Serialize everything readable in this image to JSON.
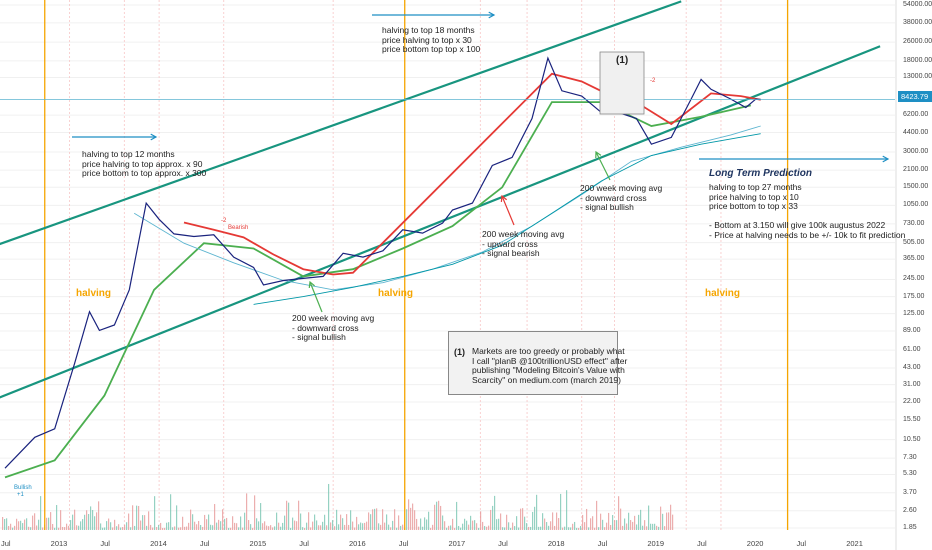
{
  "chart_data": {
    "type": "line",
    "title": "",
    "xlabel": "",
    "ylabel": "",
    "scale": "log",
    "y_ticks": [
      "54000.00",
      "38000.00",
      "26000.00",
      "18000.00",
      "13000.00",
      "6200.00",
      "4400.00",
      "3000.00",
      "2100.00",
      "1500.00",
      "1050.00",
      "730.00",
      "505.00",
      "365.00",
      "245.00",
      "175.00",
      "125.00",
      "89.00",
      "61.00",
      "43.00",
      "31.00",
      "22.00",
      "15.50",
      "10.50",
      "7.30",
      "5.30",
      "3.70",
      "2.60",
      "1.85"
    ],
    "x_ticks": [
      "Jul",
      "2013",
      "Jul",
      "2014",
      "Jul",
      "2015",
      "Jul",
      "2016",
      "Jul",
      "2017",
      "Jul",
      "2018",
      "Jul",
      "2019",
      "Jul",
      "2020",
      "Jul",
      "2021"
    ],
    "current_price": "8423.79",
    "price_series": {
      "name": "BTC",
      "x": [
        2012.5,
        2012.8,
        2013.0,
        2013.2,
        2013.35,
        2013.45,
        2013.6,
        2013.75,
        2013.92,
        2014.05,
        2014.2,
        2014.4,
        2014.6,
        2014.8,
        2015.0,
        2015.1,
        2015.3,
        2015.5,
        2015.7,
        2015.9,
        2016.1,
        2016.3,
        2016.5,
        2016.7,
        2016.9,
        2017.0,
        2017.2,
        2017.4,
        2017.6,
        2017.8,
        2017.96,
        2018.1,
        2018.3,
        2018.5,
        2018.7,
        2018.85,
        2019.0,
        2019.2,
        2019.4,
        2019.5,
        2019.6,
        2019.8,
        2019.95,
        2020.05,
        2020.1
      ],
      "y": [
        6,
        11,
        13,
        47,
        130,
        90,
        100,
        200,
        1100,
        800,
        600,
        570,
        590,
        380,
        310,
        220,
        240,
        250,
        260,
        410,
        380,
        430,
        650,
        610,
        740,
        960,
        1100,
        2300,
        2700,
        5800,
        19000,
        10000,
        9000,
        6500,
        6400,
        5800,
        3500,
        4000,
        8500,
        12500,
        10300,
        8500,
        7200,
        8500,
        8423.79
      ]
    },
    "series": [
      {
        "name": "",
        "color": "#4caf50",
        "x": [
          2012.5,
          2013.0,
          2013.5,
          2014.0,
          2014.5,
          2015.0,
          2015.5,
          2016.0,
          2016.5,
          2017.0,
          2017.5,
          2018.0,
          2018.5,
          2019.0,
          2019.5,
          2020.0
        ],
        "y": [
          5,
          7,
          25,
          200,
          500,
          450,
          260,
          300,
          450,
          700,
          1500,
          8000,
          8000,
          5000,
          6000,
          7500
        ]
      },
      {
        "name": "",
        "color": "#e53935",
        "x": [
          2014.3,
          2014.6,
          2014.9,
          2015.2,
          2015.5,
          2015.8,
          2016.0,
          2018.0,
          2018.3,
          2018.6,
          2018.9,
          2019.2,
          2019.6,
          2019.9,
          2020.1
        ],
        "y": [
          750,
          650,
          560,
          400,
          300,
          270,
          280,
          14000,
          12000,
          9000,
          7500,
          5200,
          9500,
          9000,
          8400
        ]
      },
      {
        "name": "",
        "color": "#5db5d0",
        "x": [
          2013.8,
          2014.3,
          2014.8,
          2015.3,
          2015.8,
          2016.3,
          2016.8,
          2017.3,
          2017.8,
          2018.3,
          2018.8,
          2019.3,
          2019.8,
          2020.1
        ],
        "y": [
          900,
          500,
          340,
          240,
          200,
          230,
          300,
          420,
          700,
          1300,
          2500,
          3300,
          4200,
          5000
        ]
      },
      {
        "name": "",
        "color": "#0097a7",
        "x": [
          2015.0,
          2015.5,
          2016.0,
          2016.5,
          2017.0,
          2017.5,
          2018.0,
          2018.5,
          2019.0,
          2019.5,
          2020.1
        ],
        "y": [
          150,
          175,
          210,
          260,
          330,
          480,
          900,
          1700,
          2800,
          3500,
          4300
        ]
      }
    ],
    "channel": {
      "upper": [
        [
          2012.0,
          360
        ],
        [
          2019.3,
          58000
        ]
      ],
      "lower": [
        [
          2012.0,
          17
        ],
        [
          2021.3,
          24000
        ]
      ],
      "color": "#18957f"
    },
    "halvings": [
      2012.9,
      2016.52,
      2020.37
    ],
    "vertical_markers": [
      2013.15,
      2013.7,
      2014.05,
      2014.7,
      2015.8,
      2017.28,
      2017.75,
      2018.3,
      2018.63,
      2019.35,
      2019.7
    ]
  },
  "annotations": {
    "halving1": "halving to top 12 months\nprice halving to top approx. x 90\nprice bottom to top approx. x 300",
    "halving2": "halving to top 18 months\nprice halving to top x 30\nprice bottom top top x 100",
    "ma_2015": "200 week moving avg\n- downward cross\n- signal bullish",
    "ma_2018": "200 week moving avg\n- upward cross\n- signal bearish",
    "ma_2019": "200 week moving avg\n- downward cross\n- signal bullish",
    "prediction_title": "Long Term Prediction",
    "prediction_body": "halving to top 27 months\nprice halving to top x 10\nprice bottom to top x 33\n\n- Bottom at 3.150 will give 100k augustus 2022\n- Price at halving needs to be +/- 10k to fit prediction",
    "halving_label": "halving",
    "box_num": "(1)",
    "top_box_num": "(1)",
    "box_text": "Markets are too greedy or probably what\nI call \"planB @100trillionUSD effect\" after\npublishing \"Modeling Bitcoin's Value with\nScarcity\" on medium.com (march 2019)",
    "bearish_tag": "Bearish",
    "bullish_tag": "Bullish",
    "minus2": "-2",
    "plus1": "+1"
  },
  "colors": {
    "channel": "#18957f",
    "halving": "#f5a500",
    "arrow": "#1e8fc4",
    "ma_green": "#4caf50",
    "ma_red": "#e53935",
    "price": "#1a237e"
  }
}
